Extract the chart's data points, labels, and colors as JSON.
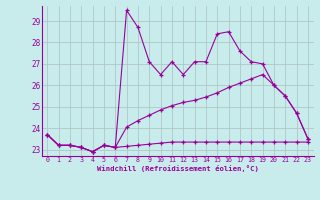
{
  "xlabel": "Windchill (Refroidissement éolien,°C)",
  "background_color": "#c8ecec",
  "grid_color": "#b0c8c8",
  "line_color": "#990099",
  "xlim": [
    -0.5,
    23.5
  ],
  "ylim": [
    22.7,
    29.7
  ],
  "yticks": [
    23,
    24,
    25,
    26,
    27,
    28,
    29
  ],
  "xticks": [
    0,
    1,
    2,
    3,
    4,
    5,
    6,
    7,
    8,
    9,
    10,
    11,
    12,
    13,
    14,
    15,
    16,
    17,
    18,
    19,
    20,
    21,
    22,
    23
  ],
  "series1_x": [
    0,
    1,
    2,
    3,
    4,
    5,
    6,
    7,
    8,
    9,
    10,
    11,
    12,
    13,
    14,
    15,
    16,
    17,
    18,
    19,
    20,
    21,
    22,
    23
  ],
  "series1_y": [
    23.7,
    23.2,
    23.2,
    23.1,
    22.9,
    23.2,
    23.1,
    29.5,
    28.7,
    27.1,
    26.5,
    27.1,
    26.5,
    27.1,
    27.1,
    28.4,
    28.5,
    27.6,
    27.1,
    27.0,
    26.0,
    25.5,
    24.7,
    23.5
  ],
  "series2_x": [
    0,
    1,
    2,
    3,
    4,
    5,
    6,
    7,
    8,
    9,
    10,
    11,
    12,
    13,
    14,
    15,
    16,
    17,
    18,
    19,
    20,
    21,
    22,
    23
  ],
  "series2_y": [
    23.7,
    23.2,
    23.2,
    23.1,
    22.9,
    23.2,
    23.1,
    23.15,
    23.2,
    23.25,
    23.3,
    23.35,
    23.35,
    23.35,
    23.35,
    23.35,
    23.35,
    23.35,
    23.35,
    23.35,
    23.35,
    23.35,
    23.35,
    23.35
  ],
  "series3_x": [
    0,
    1,
    2,
    3,
    4,
    5,
    6,
    7,
    8,
    9,
    10,
    11,
    12,
    13,
    14,
    15,
    16,
    17,
    18,
    19,
    20,
    21,
    22,
    23
  ],
  "series3_y": [
    23.7,
    23.2,
    23.2,
    23.1,
    22.9,
    23.2,
    23.1,
    24.05,
    24.35,
    24.6,
    24.85,
    25.05,
    25.2,
    25.3,
    25.45,
    25.65,
    25.9,
    26.1,
    26.3,
    26.5,
    26.0,
    25.5,
    24.7,
    23.5
  ]
}
